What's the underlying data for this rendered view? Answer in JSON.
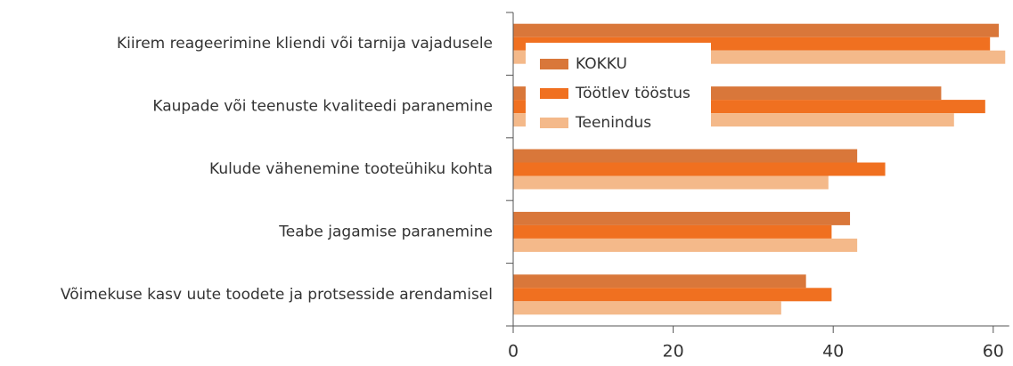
{
  "chart_data": {
    "type": "bar",
    "orientation": "horizontal",
    "categories": [
      "Kiirem reageerimine kliendi või tarnija vajadusele",
      "Kaupade või teenuste kvaliteedi paranemine",
      "Kulude vähenemine tooteühiku kohta",
      "Teabe jagamise paranemine",
      "Võimekuse kasv uute toodete ja protsesside arendamisel"
    ],
    "series": [
      {
        "name": "KOKKU",
        "color": "#d9773a",
        "values": [
          60.7,
          53.5,
          43.0,
          42.1,
          36.6
        ]
      },
      {
        "name": "Töötlev tööstus",
        "color": "#f07020",
        "values": [
          59.6,
          59.0,
          46.5,
          39.8,
          39.8
        ]
      },
      {
        "name": "Teenindus",
        "color": "#f4b98a",
        "values": [
          61.5,
          55.1,
          39.4,
          43.0,
          33.5
        ]
      }
    ],
    "xlim": [
      0,
      62
    ],
    "xticks": [
      0,
      20,
      40,
      60
    ],
    "legend": "upper left"
  }
}
